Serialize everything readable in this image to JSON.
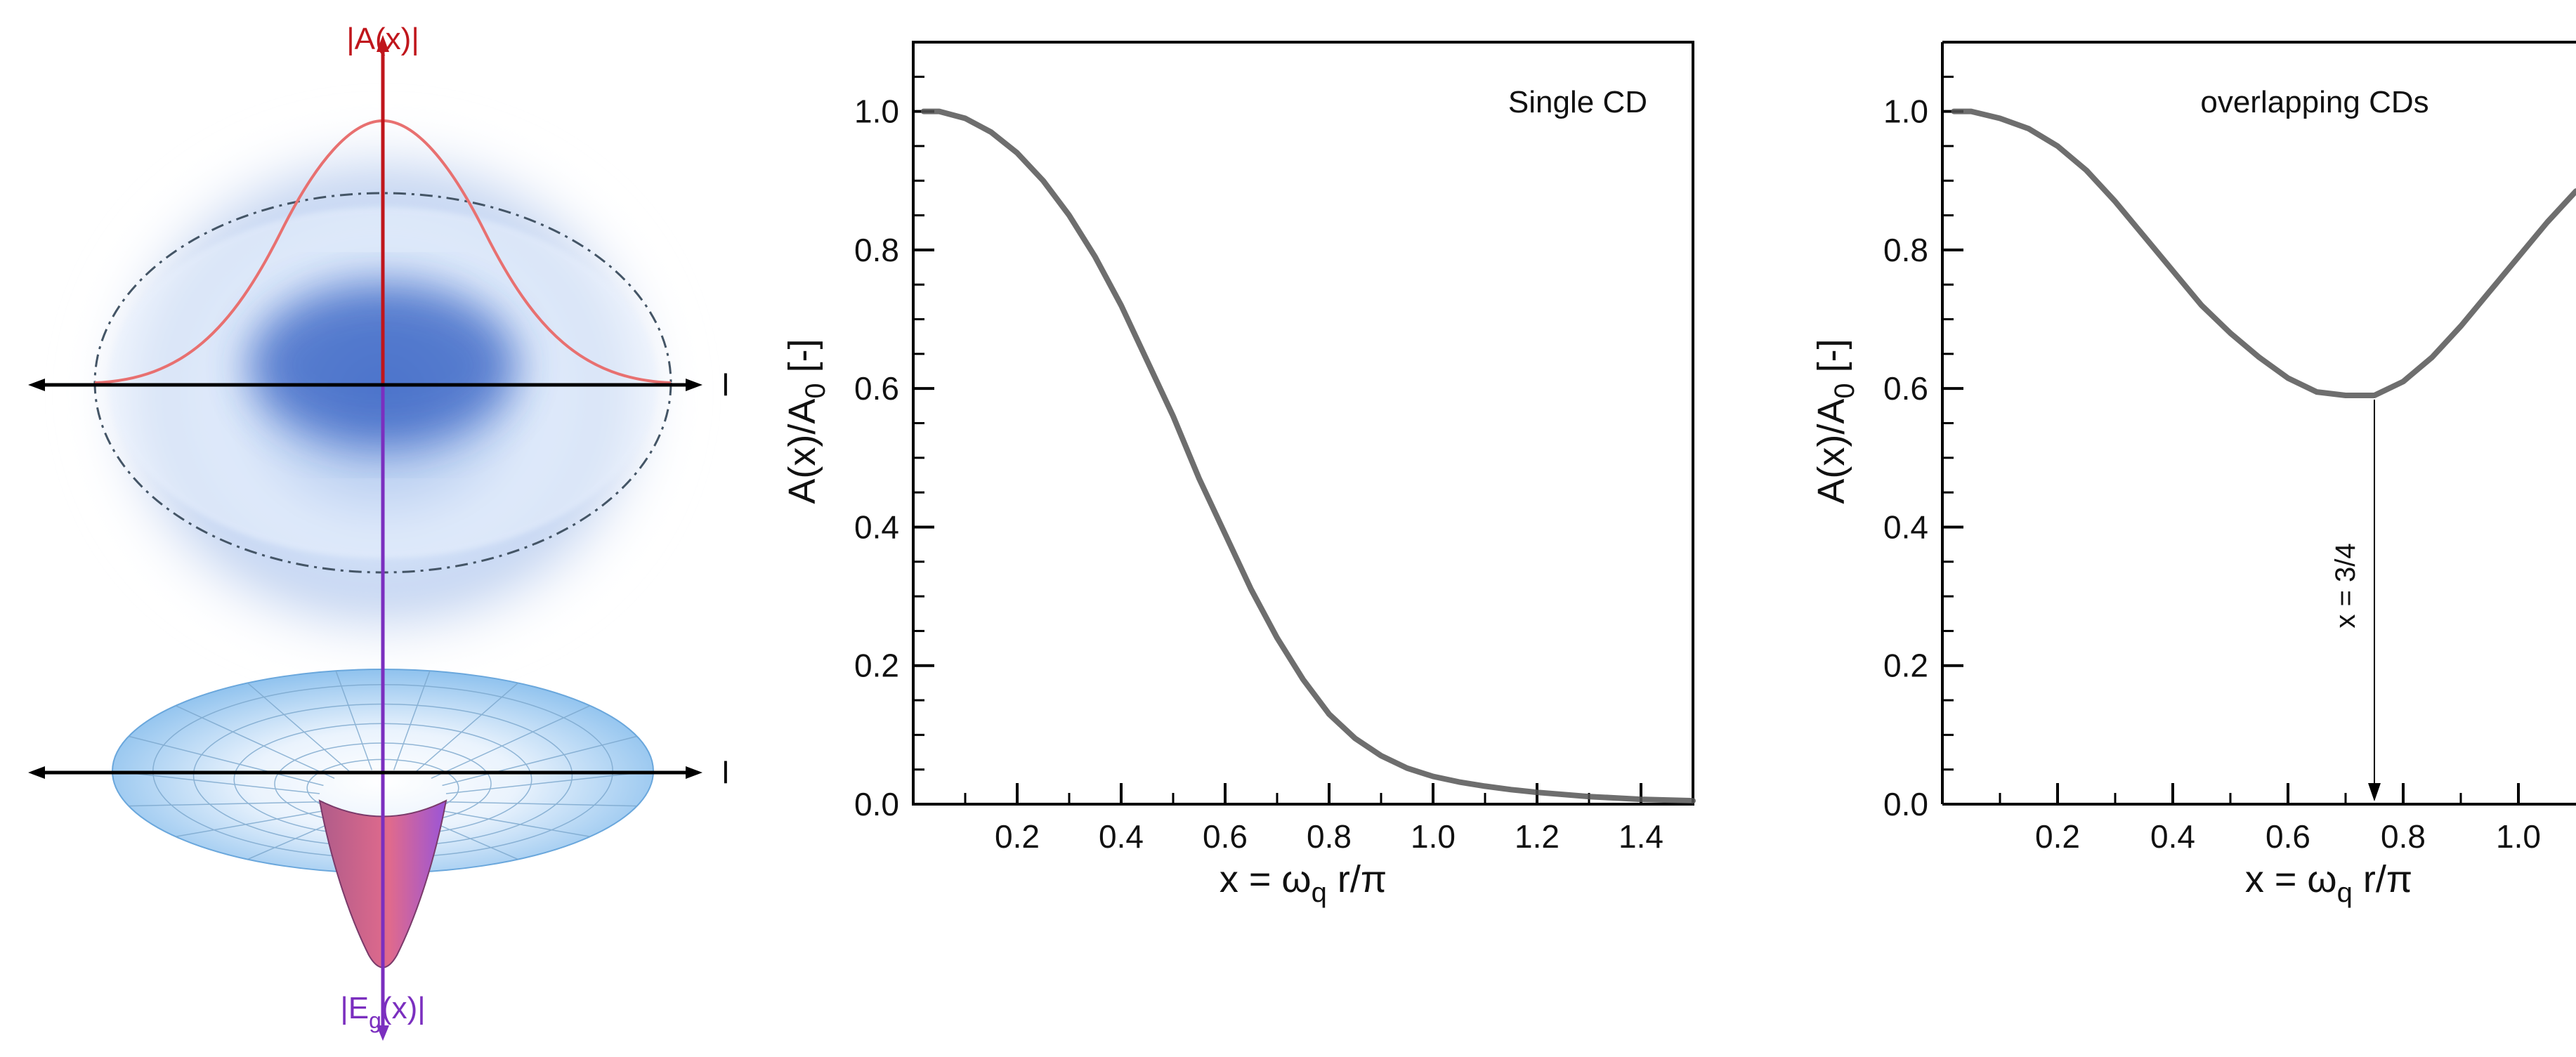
{
  "diagram": {
    "top_axis_label": "|A(x)|",
    "bottom_axis_label_main": "|E",
    "bottom_axis_label_sub": "g",
    "bottom_axis_label_tail": "(x)|",
    "right_marker_top": "l",
    "right_marker_bottom": "l"
  },
  "colors": {
    "amplitude_axis": "#c0161c",
    "energy_axis": "#7b2fbf",
    "curve": "#555555",
    "frame": "#000000"
  },
  "chart_data": [
    {
      "type": "line",
      "annotation": "Single CD",
      "xlabel_main": "x = ω",
      "xlabel_sub": "q",
      "xlabel_tail": " r/π",
      "ylabel_main": "A(x)/A",
      "ylabel_sub": "0",
      "ylabel_tail": " [-]",
      "xlim": [
        0.0,
        1.5
      ],
      "ylim": [
        0.0,
        1.1
      ],
      "xticks": [
        {
          "value": 0.2,
          "label": "0.2"
        },
        {
          "value": 0.4,
          "label": "0.4"
        },
        {
          "value": 0.6,
          "label": "0.6"
        },
        {
          "value": 0.8,
          "label": "0.8"
        },
        {
          "value": 1.0,
          "label": "1.0"
        },
        {
          "value": 1.2,
          "label": "1.2"
        },
        {
          "value": 1.4,
          "label": "1.4"
        }
      ],
      "yticks": [
        {
          "value": 0.0,
          "label": "0.0"
        },
        {
          "value": 0.2,
          "label": "0.2"
        },
        {
          "value": 0.4,
          "label": "0.4"
        },
        {
          "value": 0.6,
          "label": "0.6"
        },
        {
          "value": 0.8,
          "label": "0.8"
        },
        {
          "value": 1.0,
          "label": "1.0"
        }
      ],
      "series": [
        {
          "x": [
            0.02,
            0.05,
            0.1,
            0.15,
            0.2,
            0.25,
            0.3,
            0.35,
            0.4,
            0.45,
            0.5,
            0.55,
            0.6,
            0.65,
            0.7,
            0.75,
            0.8,
            0.85,
            0.9,
            0.95,
            1.0,
            1.05,
            1.1,
            1.15,
            1.2,
            1.25,
            1.3,
            1.35,
            1.4,
            1.45,
            1.5
          ],
          "y": [
            1.0,
            1.0,
            0.99,
            0.97,
            0.94,
            0.9,
            0.85,
            0.79,
            0.72,
            0.64,
            0.56,
            0.47,
            0.39,
            0.31,
            0.24,
            0.18,
            0.13,
            0.095,
            0.07,
            0.052,
            0.04,
            0.032,
            0.026,
            0.021,
            0.017,
            0.014,
            0.011,
            0.009,
            0.007,
            0.006,
            0.005
          ]
        }
      ]
    },
    {
      "type": "line",
      "annotation": "overlapping CDs",
      "xlabel_main": "x = ω",
      "xlabel_sub": "q",
      "xlabel_tail": " r/π",
      "ylabel_main": "A(x)/A",
      "ylabel_sub": "0",
      "ylabel_tail": " [-]",
      "xlim": [
        0.0,
        1.1
      ],
      "ylim": [
        0.0,
        1.1
      ],
      "xticks": [
        {
          "value": 0.2,
          "label": "0.2"
        },
        {
          "value": 0.4,
          "label": "0.4"
        },
        {
          "value": 0.6,
          "label": "0.6"
        },
        {
          "value": 0.8,
          "label": "0.8"
        },
        {
          "value": 1.0,
          "label": "1.0"
        }
      ],
      "yticks": [
        {
          "value": 0.0,
          "label": "0.0"
        },
        {
          "value": 0.2,
          "label": "0.2"
        },
        {
          "value": 0.4,
          "label": "0.4"
        },
        {
          "value": 0.6,
          "label": "0.6"
        },
        {
          "value": 0.8,
          "label": "0.8"
        },
        {
          "value": 1.0,
          "label": "1.0"
        }
      ],
      "marker_text": "x = 3/4",
      "marker_x": 0.75,
      "marker_y": 0.59,
      "series": [
        {
          "x": [
            0.02,
            0.05,
            0.1,
            0.15,
            0.2,
            0.25,
            0.3,
            0.35,
            0.4,
            0.45,
            0.5,
            0.55,
            0.6,
            0.65,
            0.7,
            0.75,
            0.8,
            0.85,
            0.9,
            0.95,
            1.0,
            1.05,
            1.1
          ],
          "y": [
            1.0,
            1.0,
            0.99,
            0.975,
            0.95,
            0.915,
            0.87,
            0.82,
            0.77,
            0.72,
            0.68,
            0.645,
            0.615,
            0.595,
            0.59,
            0.59,
            0.61,
            0.645,
            0.69,
            0.74,
            0.79,
            0.84,
            0.885
          ]
        }
      ]
    }
  ]
}
